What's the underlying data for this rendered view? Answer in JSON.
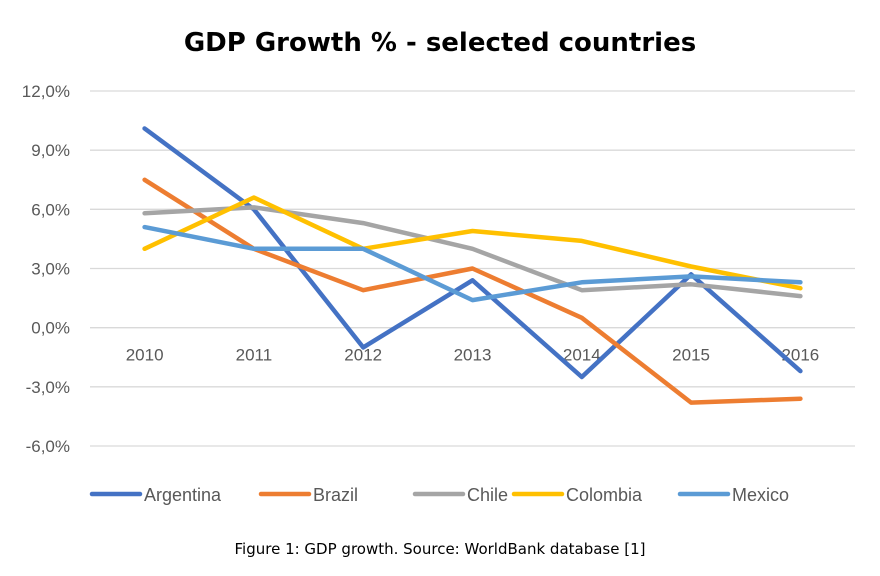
{
  "caption": "Figure 1: GDP growth. Source: WorldBank database [1]",
  "chart_data": {
    "type": "line",
    "title": "GDP Growth % - selected countries",
    "xlabel": "",
    "ylabel": "",
    "categories": [
      "2010",
      "2011",
      "2012",
      "2013",
      "2014",
      "2015",
      "2016"
    ],
    "ylim": [
      -6.0,
      12.0
    ],
    "yticks": [
      12.0,
      9.0,
      6.0,
      3.0,
      0.0,
      -3.0,
      -6.0
    ],
    "ytick_labels": [
      "12,0%",
      "9,0%",
      "6,0%",
      "3,0%",
      "0,0%",
      "-3,0%",
      "-6,0%"
    ],
    "grid": true,
    "legend": "bottom",
    "series": [
      {
        "name": "Argentina",
        "color": "#4472C4",
        "values": [
          10.1,
          6.0,
          -1.0,
          2.4,
          -2.5,
          2.7,
          -2.2
        ]
      },
      {
        "name": "Brazil",
        "color": "#ED7D31",
        "values": [
          7.5,
          4.0,
          1.9,
          3.0,
          0.5,
          -3.8,
          -3.6
        ]
      },
      {
        "name": "Chile",
        "color": "#A5A5A5",
        "values": [
          5.8,
          6.1,
          5.3,
          4.0,
          1.9,
          2.2,
          1.6
        ]
      },
      {
        "name": "Colombia",
        "color": "#FFC000",
        "values": [
          4.0,
          6.6,
          4.0,
          4.9,
          4.4,
          3.1,
          2.0
        ]
      },
      {
        "name": "Mexico",
        "color": "#5B9BD5",
        "values": [
          5.1,
          4.0,
          4.0,
          1.4,
          2.3,
          2.6,
          2.3
        ]
      }
    ]
  }
}
